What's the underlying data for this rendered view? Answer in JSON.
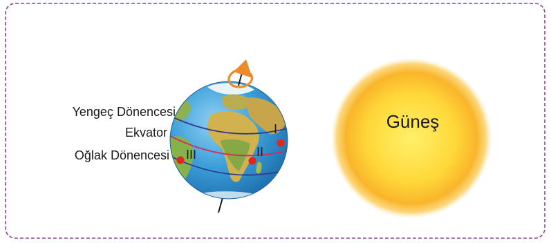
{
  "globe": {
    "labels": {
      "tropic_of_cancer": "Yengeç Dönencesi",
      "equator": "Ekvator",
      "tropic_of_capricorn": "Oğlak Dönencesi"
    },
    "points": [
      {
        "label": "I"
      },
      {
        "label": "II"
      },
      {
        "label": "III"
      }
    ]
  },
  "sun": {
    "label": "Güneş"
  },
  "colors": {
    "frame_border": "#8e3f91",
    "ocean": "#3b9ed8",
    "land": "#c9ad49",
    "tropic_line": "#2f3a8f",
    "equator_line": "#d6285a",
    "point": "#e52321",
    "rotation_arrow": "#ef8a2b",
    "sun_core": "#ffe04a",
    "sun_edge": "#f8b82a"
  },
  "icons": {
    "rotation": "curved-rotation-arrow-icon",
    "sun": "sun-icon",
    "earth": "earth-globe-icon"
  }
}
